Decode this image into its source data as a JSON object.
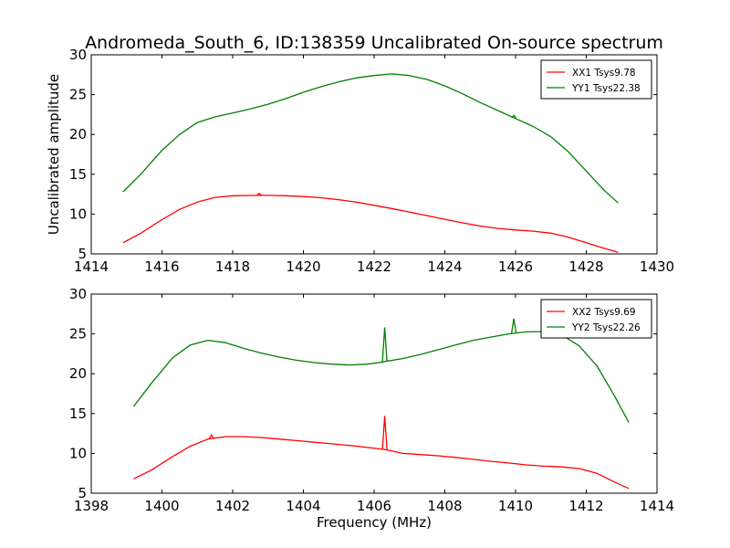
{
  "figure": {
    "title": "Andromeda_South_6, ID:138359 Uncalibrated On-source spectrum",
    "ylabel": "Uncalibrated amplitude",
    "xlabel": "Frequency (MHz)"
  },
  "chart_data": [
    {
      "type": "line",
      "xlim": [
        1414,
        1430
      ],
      "ylim": [
        5,
        30
      ],
      "xticks": [
        1414,
        1416,
        1418,
        1420,
        1422,
        1424,
        1426,
        1428,
        1430
      ],
      "yticks": [
        5,
        10,
        15,
        20,
        25,
        30
      ],
      "legend_position": "top-right",
      "series": [
        {
          "name": "XX1 Tsys9.78",
          "color": "#ff0000",
          "points": [
            [
              1414.9,
              6.4
            ],
            [
              1415.4,
              7.6
            ],
            [
              1416.0,
              9.3
            ],
            [
              1416.5,
              10.6
            ],
            [
              1417.0,
              11.5
            ],
            [
              1417.5,
              12.1
            ],
            [
              1418.0,
              12.3
            ],
            [
              1418.75,
              12.35
            ],
            [
              1419.0,
              12.35
            ],
            [
              1419.5,
              12.3
            ],
            [
              1420.0,
              12.2
            ],
            [
              1420.5,
              12.05
            ],
            [
              1421.0,
              11.8
            ],
            [
              1421.5,
              11.5
            ],
            [
              1422.0,
              11.1
            ],
            [
              1422.5,
              10.7
            ],
            [
              1423.0,
              10.25
            ],
            [
              1423.5,
              9.8
            ],
            [
              1424.0,
              9.35
            ],
            [
              1424.5,
              8.9
            ],
            [
              1425.0,
              8.5
            ],
            [
              1425.5,
              8.2
            ],
            [
              1426.0,
              8.0
            ],
            [
              1426.5,
              7.85
            ],
            [
              1427.0,
              7.6
            ],
            [
              1427.5,
              7.1
            ],
            [
              1428.0,
              6.4
            ],
            [
              1428.5,
              5.7
            ],
            [
              1428.9,
              5.2
            ]
          ],
          "spikes": [
            [
              1418.75,
              12.6
            ]
          ]
        },
        {
          "name": "YY1 Tsys22.38",
          "color": "#008000",
          "points": [
            [
              1414.9,
              12.8
            ],
            [
              1415.4,
              15.0
            ],
            [
              1416.0,
              18.0
            ],
            [
              1416.5,
              20.0
            ],
            [
              1417.0,
              21.5
            ],
            [
              1417.5,
              22.2
            ],
            [
              1418.0,
              22.7
            ],
            [
              1418.5,
              23.2
            ],
            [
              1419.0,
              23.8
            ],
            [
              1419.5,
              24.5
            ],
            [
              1420.0,
              25.3
            ],
            [
              1420.5,
              26.0
            ],
            [
              1421.0,
              26.6
            ],
            [
              1421.5,
              27.1
            ],
            [
              1422.0,
              27.4
            ],
            [
              1422.5,
              27.6
            ],
            [
              1423.0,
              27.4
            ],
            [
              1423.5,
              26.9
            ],
            [
              1424.0,
              26.1
            ],
            [
              1424.5,
              25.1
            ],
            [
              1425.0,
              24.0
            ],
            [
              1425.5,
              23.0
            ],
            [
              1426.0,
              22.0
            ],
            [
              1426.5,
              21.0
            ],
            [
              1427.0,
              19.7
            ],
            [
              1427.5,
              17.8
            ],
            [
              1428.0,
              15.4
            ],
            [
              1428.5,
              13.0
            ],
            [
              1428.9,
              11.4
            ]
          ],
          "spikes": [
            [
              1425.95,
              22.4
            ]
          ]
        }
      ]
    },
    {
      "type": "line",
      "xlim": [
        1398,
        1414
      ],
      "ylim": [
        5,
        30
      ],
      "xticks": [
        1398,
        1400,
        1402,
        1404,
        1406,
        1408,
        1410,
        1412,
        1414
      ],
      "yticks": [
        5,
        10,
        15,
        20,
        25,
        30
      ],
      "legend_position": "top-right",
      "series": [
        {
          "name": "XX2 Tsys9.69",
          "color": "#ff0000",
          "points": [
            [
              1399.2,
              6.8
            ],
            [
              1399.7,
              7.9
            ],
            [
              1400.3,
              9.6
            ],
            [
              1400.8,
              10.9
            ],
            [
              1401.3,
              11.8
            ],
            [
              1401.8,
              12.1
            ],
            [
              1402.3,
              12.1
            ],
            [
              1402.8,
              12.0
            ],
            [
              1403.3,
              11.8
            ],
            [
              1403.8,
              11.6
            ],
            [
              1404.3,
              11.4
            ],
            [
              1404.8,
              11.2
            ],
            [
              1405.3,
              11.0
            ],
            [
              1405.8,
              10.75
            ],
            [
              1406.2,
              10.55
            ],
            [
              1406.4,
              10.4
            ],
            [
              1406.8,
              10.0
            ],
            [
              1407.3,
              9.85
            ],
            [
              1407.8,
              9.7
            ],
            [
              1408.3,
              9.5
            ],
            [
              1408.8,
              9.25
            ],
            [
              1409.3,
              9.0
            ],
            [
              1409.8,
              8.8
            ],
            [
              1410.3,
              8.55
            ],
            [
              1410.8,
              8.4
            ],
            [
              1411.3,
              8.3
            ],
            [
              1411.8,
              8.1
            ],
            [
              1412.3,
              7.5
            ],
            [
              1412.8,
              6.4
            ],
            [
              1413.2,
              5.6
            ]
          ],
          "spikes": [
            [
              1406.3,
              14.7
            ],
            [
              1401.4,
              12.3
            ]
          ]
        },
        {
          "name": "YY2 Tsys22.26",
          "color": "#008000",
          "points": [
            [
              1399.2,
              15.9
            ],
            [
              1399.7,
              18.8
            ],
            [
              1400.3,
              22.0
            ],
            [
              1400.8,
              23.6
            ],
            [
              1401.3,
              24.2
            ],
            [
              1401.8,
              23.9
            ],
            [
              1402.3,
              23.2
            ],
            [
              1402.8,
              22.6
            ],
            [
              1403.3,
              22.1
            ],
            [
              1403.8,
              21.7
            ],
            [
              1404.3,
              21.4
            ],
            [
              1404.8,
              21.2
            ],
            [
              1405.3,
              21.1
            ],
            [
              1405.8,
              21.2
            ],
            [
              1406.15,
              21.4
            ],
            [
              1406.4,
              21.6
            ],
            [
              1406.8,
              21.9
            ],
            [
              1407.3,
              22.4
            ],
            [
              1407.8,
              23.0
            ],
            [
              1408.3,
              23.6
            ],
            [
              1408.8,
              24.2
            ],
            [
              1409.3,
              24.6
            ],
            [
              1409.8,
              25.0
            ],
            [
              1410.3,
              25.25
            ],
            [
              1410.8,
              25.3
            ],
            [
              1411.3,
              24.9
            ],
            [
              1411.8,
              23.5
            ],
            [
              1412.3,
              21.0
            ],
            [
              1412.8,
              17.2
            ],
            [
              1413.2,
              13.9
            ]
          ],
          "spikes": [
            [
              1406.3,
              25.8
            ],
            [
              1409.95,
              26.9
            ]
          ]
        }
      ]
    }
  ]
}
